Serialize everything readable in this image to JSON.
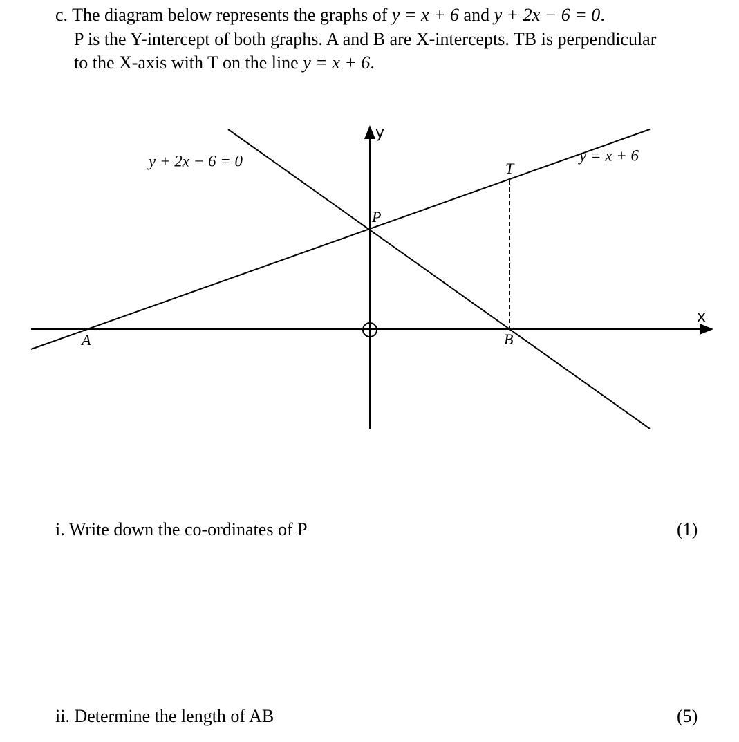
{
  "question": {
    "label": "c.",
    "intro": [
      [
        "The diagram below represents the graphs of ",
        "y = x + 6",
        " and ",
        "y + 2x − 6 = 0",
        "."
      ],
      [
        "P is the Y-intercept of both graphs. A and B are X-intercepts. TB is perpendicular"
      ],
      [
        "to the X-axis with T on the line ",
        "y = x + 6",
        "."
      ]
    ]
  },
  "diagram": {
    "axis_labels": {
      "x": "x",
      "y": "y"
    },
    "points": {
      "A": "A",
      "B": "B",
      "P": "P",
      "T": "T"
    },
    "line_labels": [
      "y + 2x − 6 = 0",
      "y = x + 6"
    ]
  },
  "parts": [
    {
      "text": "i. Write down the co-ordinates of P",
      "marks": "(1)"
    },
    {
      "text": "ii. Determine the length of AB",
      "marks": "(5)"
    }
  ]
}
